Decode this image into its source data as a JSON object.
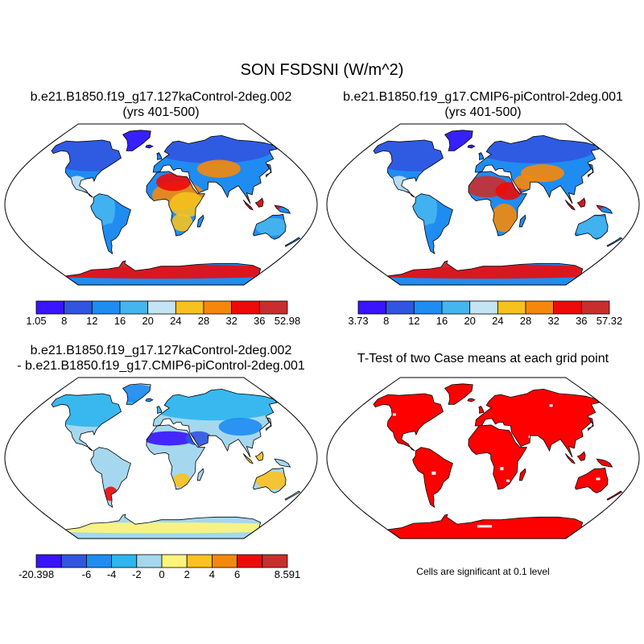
{
  "main_title": "SON FSDSNI (W/m^2)",
  "panels": [
    {
      "id": "case1",
      "title_line1": "b.e21.B1850.f19_g17.127kaControl-2deg.002",
      "title_line2": "(yrs 401-500)",
      "colorbar": {
        "colors": [
          "#3a14ff",
          "#3155e0",
          "#1f8cf2",
          "#46b5ee",
          "#c4e4f4",
          "#f5c21e",
          "#f5880c",
          "#ee0a0a",
          "#c92e2e"
        ],
        "tick_labels": [
          "1.05",
          "8",
          "12",
          "16",
          "20",
          "24",
          "28",
          "32",
          "36",
          "52.98"
        ]
      }
    },
    {
      "id": "case2",
      "title_line1": "b.e21.B1850.f19_g17.CMIP6-piControl-2deg.001",
      "title_line2": "(yrs 401-500)",
      "colorbar": {
        "colors": [
          "#3a14ff",
          "#3155e0",
          "#1f8cf2",
          "#46b5ee",
          "#c4e4f4",
          "#f5c21e",
          "#f5880c",
          "#ee0a0a",
          "#c92e2e"
        ],
        "tick_labels": [
          "3.73",
          "8",
          "12",
          "16",
          "20",
          "24",
          "28",
          "32",
          "36",
          "57.32"
        ]
      }
    },
    {
      "id": "difference",
      "title_line1": "b.e21.B1850.f19_g17.127kaControl-2deg.002",
      "title_line2": "- b.e21.B1850.f19_g17.CMIP6-piControl-2deg.001",
      "colorbar": {
        "colors": [
          "#3a14ff",
          "#3155e0",
          "#1f8cf2",
          "#2db5ee",
          "#a5d8ee",
          "#fff57a",
          "#fcc21e",
          "#f5880c",
          "#ee0a0a",
          "#c92e2e"
        ],
        "tick_labels": [
          "-20.398",
          "",
          "-6",
          "-4",
          "-2",
          "0",
          "2",
          "4",
          "6",
          "",
          "8.591"
        ]
      }
    },
    {
      "id": "ttest",
      "title_line1": "T-Test of two Case means at each grid point",
      "title_line2": "",
      "note": "Cells are significant at 0.1 level",
      "significance_color": "#ff0000"
    }
  ]
}
